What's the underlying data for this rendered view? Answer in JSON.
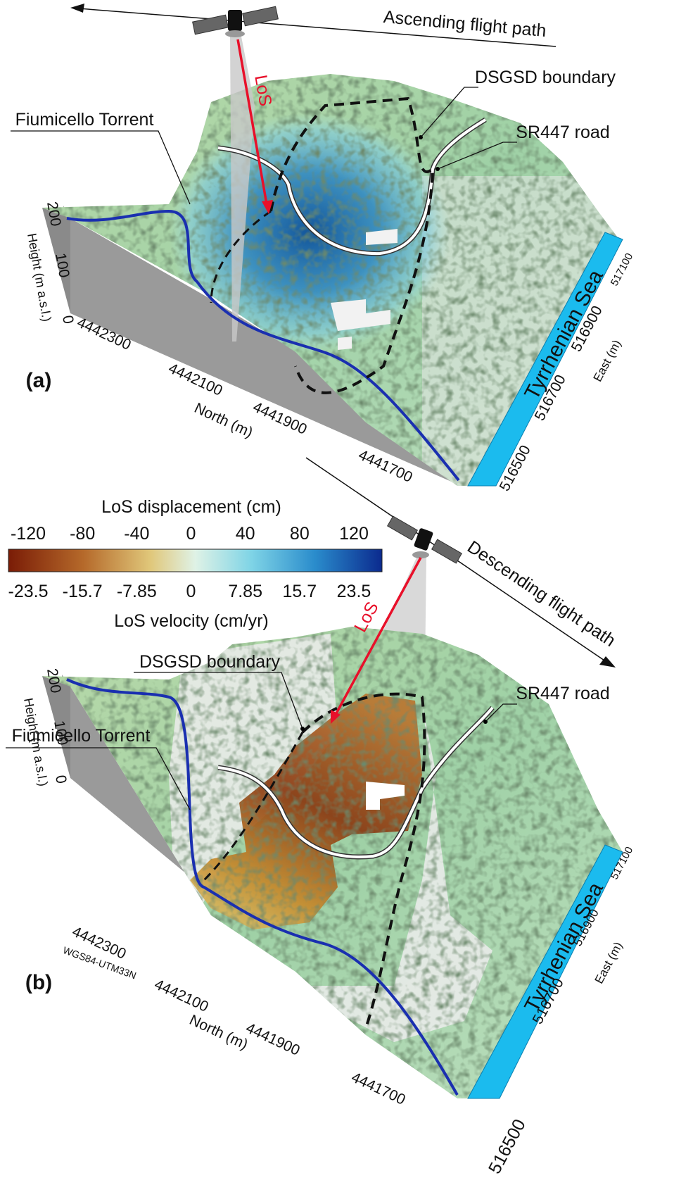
{
  "panels": [
    {
      "label": "(a)",
      "flight_path": "Ascending flight path",
      "los": "LoS",
      "dsgsd": "DSGSD boundary",
      "torrent": "Fiumicello Torrent",
      "road": "SR447 road",
      "sea": "Tyrrhenian Sea",
      "height_axis": {
        "title": "Height (m a.s.l.)",
        "ticks": [
          200,
          100,
          0
        ]
      },
      "north_axis": {
        "title": "North (m)",
        "ticks": [
          4442300,
          4442100,
          4441900,
          4441700
        ]
      },
      "east_axis": {
        "title": "East (m)",
        "ticks": [
          517100,
          516900,
          516700,
          516500
        ]
      }
    },
    {
      "label": "(b)",
      "flight_path": "Descending flight path",
      "los": "LoS",
      "dsgsd": "DSGSD boundary",
      "torrent": "Fiumicello Torrent",
      "road": "SR447 road",
      "sea": "Tyrrhenian Sea",
      "crs": "WGS84-UTM33N",
      "height_axis": {
        "title": "Height (m a.s.l.)",
        "ticks": [
          200,
          100,
          0
        ]
      },
      "north_axis": {
        "title": "North (m)",
        "ticks": [
          4442300,
          4442100,
          4441900,
          4441700
        ]
      },
      "east_axis": {
        "title": "East (m)",
        "ticks": [
          517100,
          516900,
          516700,
          516500
        ]
      }
    }
  ],
  "colorbar": {
    "displacement_title": "LoS displacement (cm)",
    "displacement_ticks": [
      -120,
      -80,
      -40,
      0,
      40,
      80,
      120
    ],
    "velocity_title": "LoS velocity (cm/yr)",
    "velocity_ticks": [
      -23.5,
      -15.7,
      -7.85,
      0,
      7.85,
      15.7,
      23.5
    ]
  }
}
